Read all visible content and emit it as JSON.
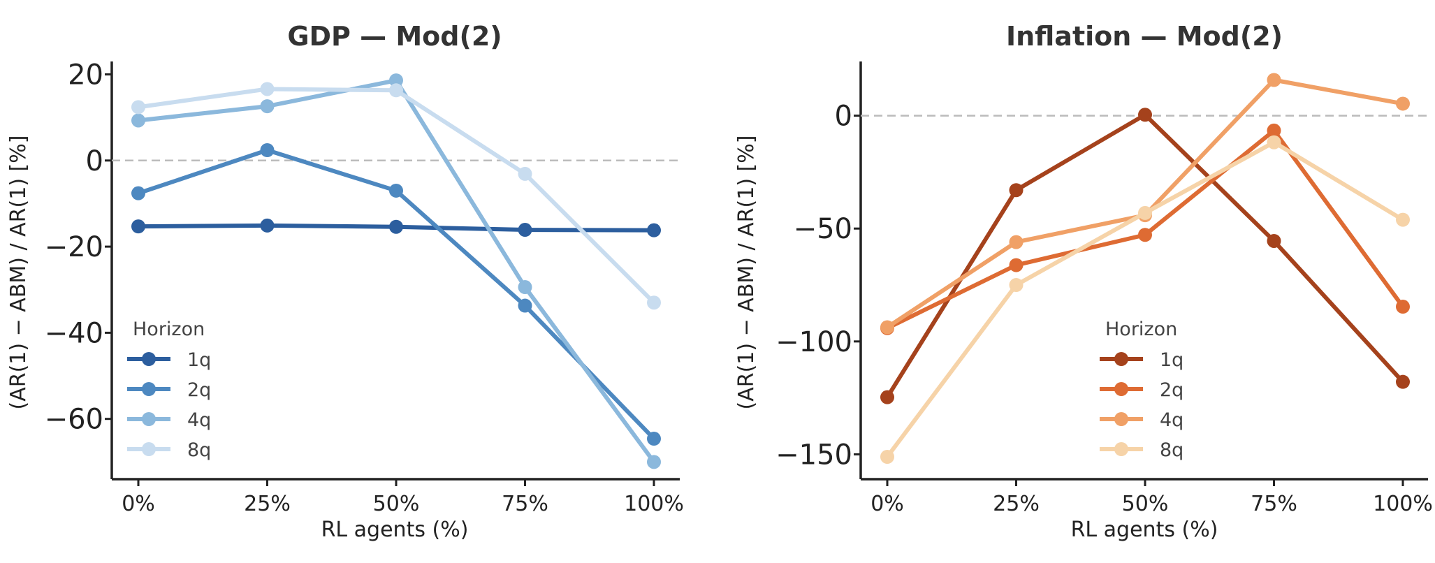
{
  "chart_data": [
    {
      "type": "line",
      "title": "GDP — Mod(2)",
      "xlabel": "RL agents (%)",
      "ylabel": "(AR(1) − ABM) / AR(1) [%]",
      "categories": [
        "0%",
        "25%",
        "50%",
        "75%",
        "100%"
      ],
      "ylim": [
        -74,
        23
      ],
      "yticks": [
        20,
        0,
        -20,
        -40,
        -60
      ],
      "ytick_labels": [
        "20",
        "0",
        "−20",
        "−40",
        "−60"
      ],
      "reference_line": 0,
      "legend": {
        "title": "Horizon",
        "position": "lower-left"
      },
      "series": [
        {
          "name": "1q",
          "color": "#2c5e9e",
          "values": [
            -15.3,
            -15.1,
            -15.4,
            -16.1,
            -16.2
          ]
        },
        {
          "name": "2q",
          "color": "#4d88c0",
          "values": [
            -7.6,
            2.4,
            -7.0,
            -33.7,
            -64.6
          ]
        },
        {
          "name": "4q",
          "color": "#8bb8dc",
          "values": [
            9.3,
            12.6,
            18.6,
            -29.4,
            -70.0
          ]
        },
        {
          "name": "8q",
          "color": "#c8dcef",
          "values": [
            12.4,
            16.6,
            16.3,
            -3.1,
            -33.0
          ]
        }
      ]
    },
    {
      "type": "line",
      "title": "Inflation — Mod(2)",
      "xlabel": "RL agents (%)",
      "ylabel": "(AR(1) − ABM) / AR(1) [%]",
      "categories": [
        "0%",
        "25%",
        "50%",
        "75%",
        "100%"
      ],
      "ylim": [
        -161,
        24
      ],
      "yticks": [
        0,
        -50,
        -100,
        -150
      ],
      "ytick_labels": [
        "0",
        "−50",
        "−100",
        "−150"
      ],
      "reference_line": 0,
      "legend": {
        "title": "Horizon",
        "position": "lower-center"
      },
      "series": [
        {
          "name": "1q",
          "color": "#a5421c",
          "values": [
            -124.7,
            -33.0,
            0.4,
            -55.5,
            -117.9
          ]
        },
        {
          "name": "2q",
          "color": "#de6b33",
          "values": [
            -94.1,
            -66.2,
            -52.8,
            -6.6,
            -84.6
          ]
        },
        {
          "name": "4q",
          "color": "#f0a066",
          "values": [
            -93.7,
            -56.0,
            -44.1,
            15.8,
            5.3
          ]
        },
        {
          "name": "8q",
          "color": "#f6d3a8",
          "values": [
            -151.1,
            -75.0,
            -43.1,
            -11.8,
            -46.1
          ]
        }
      ]
    }
  ]
}
